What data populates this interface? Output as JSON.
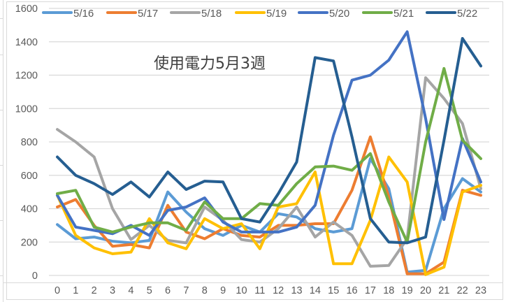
{
  "chart_data": {
    "type": "line",
    "title": "使用電力5月3週",
    "xlabel": "",
    "ylabel": "",
    "ylim": [
      0,
      1600
    ],
    "yticks": [
      0,
      200,
      400,
      600,
      800,
      1000,
      1200,
      1400,
      1600
    ],
    "grid": true,
    "legend_position": "top",
    "x": [
      0,
      1,
      2,
      3,
      4,
      5,
      6,
      7,
      8,
      9,
      10,
      11,
      12,
      13,
      14,
      15,
      16,
      17,
      18,
      19,
      20,
      21,
      22,
      23
    ],
    "series": [
      {
        "name": "5/16",
        "color": "#5B9BD5",
        "values": [
          305,
          220,
          230,
          205,
          195,
          210,
          500,
          380,
          280,
          240,
          300,
          260,
          370,
          350,
          280,
          260,
          280,
          700,
          520,
          20,
          30,
          400,
          580,
          500
        ]
      },
      {
        "name": "5/17",
        "color": "#ED7D31",
        "values": [
          410,
          455,
          300,
          175,
          185,
          165,
          420,
          260,
          220,
          280,
          240,
          230,
          300,
          300,
          310,
          310,
          510,
          830,
          470,
          10,
          10,
          80,
          510,
          480
        ]
      },
      {
        "name": "5/18",
        "color": "#A5A5A5",
        "values": [
          875,
          800,
          710,
          400,
          215,
          300,
          210,
          195,
          410,
          330,
          215,
          200,
          280,
          410,
          230,
          320,
          240,
          55,
          60,
          220,
          1185,
          1060,
          910,
          520
        ]
      },
      {
        "name": "5/19",
        "color": "#FFC000",
        "values": [
          480,
          240,
          165,
          130,
          140,
          340,
          195,
          160,
          340,
          280,
          310,
          160,
          410,
          430,
          620,
          70,
          70,
          330,
          710,
          560,
          5,
          50,
          500,
          540
        ]
      },
      {
        "name": "5/20",
        "color": "#4472C4",
        "values": [
          480,
          290,
          270,
          250,
          300,
          240,
          390,
          410,
          465,
          320,
          260,
          260,
          260,
          290,
          420,
          840,
          1170,
          1200,
          1290,
          1460,
          940,
          335,
          820,
          560
        ]
      },
      {
        "name": "5/21",
        "color": "#70AD47",
        "values": [
          490,
          510,
          290,
          260,
          290,
          315,
          315,
          270,
          440,
          340,
          340,
          430,
          420,
          550,
          650,
          655,
          630,
          730,
          440,
          200,
          800,
          1240,
          810,
          700
        ]
      },
      {
        "name": "5/22",
        "color": "#255E91",
        "values": [
          710,
          600,
          550,
          485,
          560,
          470,
          620,
          515,
          565,
          560,
          340,
          320,
          490,
          680,
          1305,
          1285,
          830,
          340,
          200,
          195,
          230,
          810,
          1420,
          1255
        ]
      }
    ]
  }
}
